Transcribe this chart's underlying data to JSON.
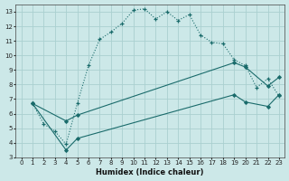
{
  "xlabel": "Humidex (Indice chaleur)",
  "bg_color": "#cce8e8",
  "grid_color": "#aad0d0",
  "line_color": "#1a6b6b",
  "xlim": [
    -0.5,
    23.5
  ],
  "ylim": [
    3,
    13.5
  ],
  "xticks": [
    0,
    1,
    2,
    3,
    4,
    5,
    6,
    7,
    8,
    9,
    10,
    11,
    12,
    13,
    14,
    15,
    16,
    17,
    18,
    19,
    20,
    21,
    22,
    23
  ],
  "yticks": [
    3,
    4,
    5,
    6,
    7,
    8,
    9,
    10,
    11,
    12,
    13
  ],
  "dotted_x": [
    1,
    2,
    3,
    4,
    5,
    6,
    7,
    8,
    9,
    10,
    11,
    12,
    13,
    14,
    15,
    16,
    17,
    18,
    19,
    20,
    21,
    22,
    23
  ],
  "dotted_y": [
    6.7,
    5.3,
    4.8,
    3.9,
    6.7,
    9.3,
    11.1,
    11.6,
    12.2,
    13.1,
    13.2,
    12.5,
    13.0,
    12.4,
    12.8,
    11.4,
    10.9,
    10.8,
    9.7,
    9.3,
    7.8,
    8.4,
    7.2
  ],
  "solid1_x": [
    1,
    4,
    5,
    19,
    20,
    22,
    23
  ],
  "solid1_y": [
    6.7,
    5.5,
    5.9,
    9.5,
    9.2,
    7.9,
    8.5
  ],
  "solid2_x": [
    1,
    4,
    5,
    19,
    20,
    22,
    23
  ],
  "solid2_y": [
    6.7,
    3.5,
    4.3,
    7.3,
    6.8,
    6.5,
    7.3
  ]
}
